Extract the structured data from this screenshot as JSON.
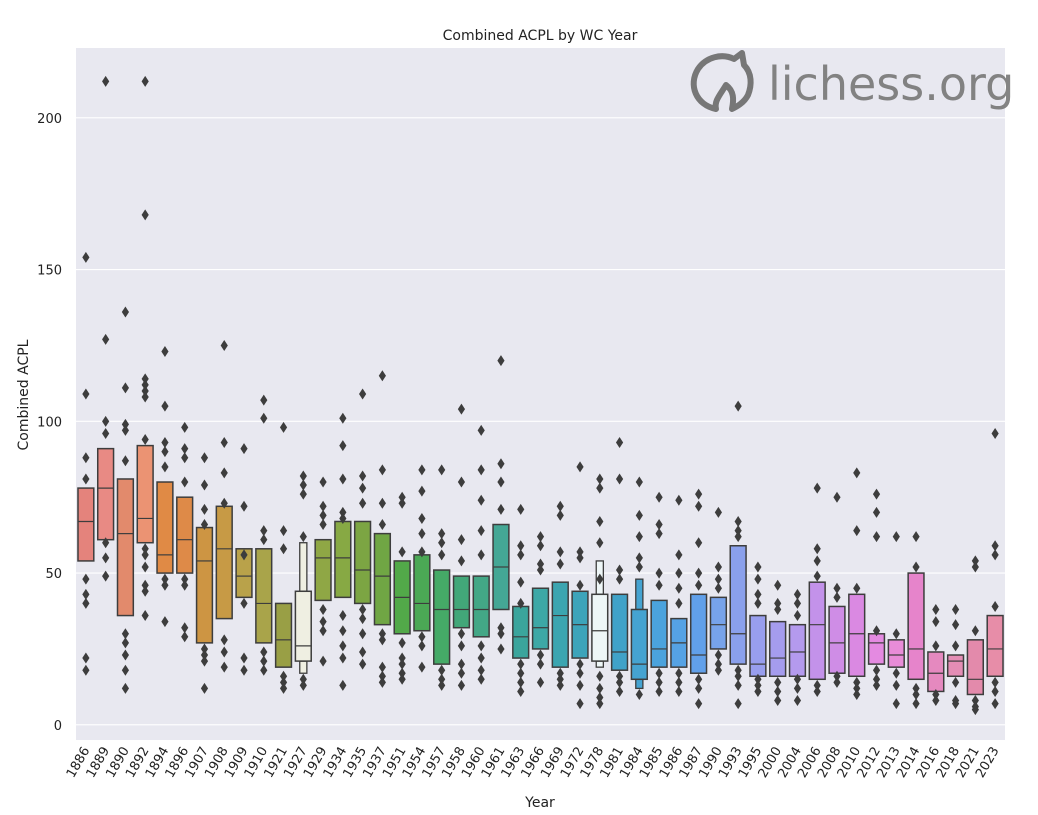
{
  "chart_data": {
    "type": "boxenplot",
    "title": "Combined ACPL by WC Year",
    "xlabel": "Year",
    "ylabel": "Combined ACPL",
    "ylim": [
      -5,
      223
    ],
    "yticks": [
      0,
      50,
      100,
      150,
      200
    ],
    "grid": true,
    "background": "#e8e8f0",
    "watermark": "lichess.org",
    "categories": [
      "1886",
      "1889",
      "1890",
      "1892",
      "1894",
      "1896",
      "1907",
      "1908",
      "1909",
      "1910",
      "1921",
      "1927",
      "1929",
      "1934",
      "1935",
      "1937",
      "1951",
      "1954",
      "1957",
      "1958",
      "1960",
      "1961",
      "1963",
      "1966",
      "1969",
      "1972",
      "1978",
      "1981",
      "1984",
      "1985",
      "1986",
      "1987",
      "1990",
      "1993",
      "1995",
      "2000",
      "2004",
      "2006",
      "2008",
      "2010",
      "2012",
      "2013",
      "2014",
      "2016",
      "2018",
      "2021",
      "2023"
    ],
    "colors": [
      "#e4837c",
      "#e88a84",
      "#e28a6c",
      "#eb9373",
      "#e08a45",
      "#de8a48",
      "#cd9543",
      "#c79a45",
      "#b9a24a",
      "#a9a44a",
      "#999f45",
      "#efefe2",
      "#8fa745",
      "#87a944",
      "#7ca543",
      "#70a644",
      "#52a949",
      "#4ba855",
      "#45aa67",
      "#42a779",
      "#43a786",
      "#44a795",
      "#3ba59c",
      "#3da8a6",
      "#3ba5b0",
      "#3ca4ba",
      "#eef6f7",
      "#40a2c8",
      "#45a3d1",
      "#4ba3dd",
      "#55a2e4",
      "#61a0ea",
      "#77a3eb",
      "#8aa0ec",
      "#989eee",
      "#a59cee",
      "#b49aee",
      "#c392ea",
      "#cf8de6",
      "#da89e2",
      "#e48ae1",
      "#e88cd8",
      "#e684cb",
      "#e589bf",
      "#e48db5",
      "#e38aab",
      "#e78da8"
    ],
    "series": [
      {
        "name": "1886",
        "q1": 54,
        "median": 67,
        "q3": 78,
        "upper": [],
        "lower": [],
        "outliers": [
          154,
          109,
          88,
          81,
          48,
          43,
          40,
          22,
          18
        ]
      },
      {
        "name": "1889",
        "q1": 61,
        "median": 78,
        "q3": 91,
        "upper": [],
        "lower": [],
        "outliers": [
          212,
          127,
          100,
          96,
          60,
          55,
          49
        ]
      },
      {
        "name": "1890",
        "q1": 36,
        "median": 63,
        "q3": 81,
        "upper": [],
        "lower": [],
        "outliers": [
          136,
          111,
          99,
          97,
          87,
          30,
          27,
          23,
          18,
          12
        ]
      },
      {
        "name": "1892",
        "q1": 60,
        "median": 68,
        "q3": 92,
        "upper": [],
        "lower": [],
        "outliers": [
          212,
          168,
          114,
          112,
          110,
          108,
          94,
          58,
          56,
          52,
          46,
          44,
          36
        ]
      },
      {
        "name": "1894",
        "q1": 50,
        "median": 56,
        "q3": 80,
        "upper": [],
        "lower": [],
        "outliers": [
          123,
          105,
          93,
          90,
          85,
          48,
          46,
          34
        ]
      },
      {
        "name": "1896",
        "q1": 50,
        "median": 61,
        "q3": 75,
        "upper": [],
        "lower": [],
        "outliers": [
          98,
          91,
          88,
          80,
          48,
          46,
          32,
          29
        ]
      },
      {
        "name": "1907",
        "q1": 27,
        "median": 54,
        "q3": 65,
        "upper": [],
        "lower": [],
        "outliers": [
          88,
          79,
          71,
          66,
          25,
          23,
          21,
          12
        ]
      },
      {
        "name": "1908",
        "q1": 35,
        "median": 58,
        "q3": 72,
        "upper": [],
        "lower": [],
        "outliers": [
          125,
          93,
          83,
          73,
          28,
          24,
          19
        ]
      },
      {
        "name": "1909",
        "q1": 42,
        "median": 49,
        "q3": 58,
        "upper": [],
        "lower": [],
        "outliers": [
          91,
          72,
          56,
          40,
          22,
          18
        ]
      },
      {
        "name": "1910",
        "q1": 27,
        "median": 40,
        "q3": 58,
        "upper": [],
        "lower": [],
        "outliers": [
          107,
          101,
          64,
          61,
          24,
          21,
          18
        ]
      },
      {
        "name": "1921",
        "q1": 19,
        "median": 28,
        "q3": 40,
        "upper": [],
        "lower": [],
        "outliers": [
          98,
          64,
          58,
          16,
          14,
          12
        ]
      },
      {
        "name": "1927",
        "q1": 21,
        "median": 26,
        "q3": 44,
        "upper": [
          60
        ],
        "lower": [
          17
        ],
        "outliers": [
          82,
          79,
          76,
          62,
          15,
          13
        ]
      },
      {
        "name": "1929",
        "q1": 41,
        "median": 55,
        "q3": 61,
        "upper": [],
        "lower": [],
        "outliers": [
          80,
          72,
          69,
          66,
          38,
          34,
          31,
          21
        ]
      },
      {
        "name": "1934",
        "q1": 42,
        "median": 55,
        "q3": 67,
        "upper": [],
        "lower": [],
        "outliers": [
          101,
          92,
          81,
          70,
          68,
          36,
          31,
          26,
          22,
          13
        ]
      },
      {
        "name": "1935",
        "q1": 40,
        "median": 51,
        "q3": 67,
        "upper": [],
        "lower": [],
        "outliers": [
          109,
          82,
          78,
          73,
          38,
          35,
          30,
          24,
          20
        ]
      },
      {
        "name": "1937",
        "q1": 33,
        "median": 49,
        "q3": 63,
        "upper": [],
        "lower": [],
        "outliers": [
          115,
          84,
          73,
          66,
          30,
          28,
          19,
          16,
          14
        ]
      },
      {
        "name": "1951",
        "q1": 30,
        "median": 42,
        "q3": 54,
        "upper": [],
        "lower": [],
        "outliers": [
          75,
          73,
          57,
          27,
          22,
          20,
          17,
          15
        ]
      },
      {
        "name": "1954",
        "q1": 31,
        "median": 40,
        "q3": 56,
        "upper": [],
        "lower": [],
        "outliers": [
          84,
          77,
          68,
          63,
          57,
          29,
          26,
          19
        ]
      },
      {
        "name": "1957",
        "q1": 20,
        "median": 38,
        "q3": 51,
        "upper": [],
        "lower": [],
        "outliers": [
          84,
          63,
          60,
          56,
          18,
          15,
          13
        ]
      },
      {
        "name": "1958",
        "q1": 32,
        "median": 38,
        "q3": 49,
        "upper": [],
        "lower": [],
        "outliers": [
          104,
          80,
          61,
          54,
          30,
          26,
          20,
          17,
          13
        ]
      },
      {
        "name": "1960",
        "q1": 29,
        "median": 38,
        "q3": 49,
        "upper": [],
        "lower": [],
        "outliers": [
          97,
          84,
          74,
          64,
          56,
          26,
          22,
          18,
          15
        ]
      },
      {
        "name": "1961",
        "q1": 38,
        "median": 52,
        "q3": 66,
        "upper": [],
        "lower": [],
        "outliers": [
          120,
          86,
          80,
          71,
          32,
          30,
          25
        ]
      },
      {
        "name": "1963",
        "q1": 22,
        "median": 29,
        "q3": 39,
        "upper": [],
        "lower": [],
        "outliers": [
          71,
          59,
          56,
          47,
          40,
          20,
          17,
          14,
          11
        ]
      },
      {
        "name": "1966",
        "q1": 25,
        "median": 32,
        "q3": 45,
        "upper": [],
        "lower": [],
        "outliers": [
          62,
          59,
          53,
          51,
          23,
          20,
          14
        ]
      },
      {
        "name": "1969",
        "q1": 19,
        "median": 36,
        "q3": 47,
        "upper": [],
        "lower": [],
        "outliers": [
          72,
          69,
          57,
          53,
          17,
          15,
          13
        ]
      },
      {
        "name": "1972",
        "q1": 22,
        "median": 33,
        "q3": 44,
        "upper": [],
        "lower": [],
        "outliers": [
          85,
          57,
          55,
          46,
          20,
          17,
          13,
          7
        ]
      },
      {
        "name": "1978",
        "q1": 21,
        "median": 31,
        "q3": 43,
        "upper": [
          54
        ],
        "lower": [
          19
        ],
        "outliers": [
          81,
          78,
          67,
          60,
          48,
          16,
          12,
          9,
          7
        ]
      },
      {
        "name": "1981",
        "q1": 18,
        "median": 24,
        "q3": 43,
        "upper": [],
        "lower": [],
        "outliers": [
          93,
          81,
          51,
          48,
          16,
          14,
          11
        ]
      },
      {
        "name": "1984",
        "q1": 15,
        "median": 20,
        "q3": 38,
        "upper": [
          48
        ],
        "lower": [
          12
        ],
        "outliers": [
          80,
          69,
          62,
          55,
          52,
          10
        ]
      },
      {
        "name": "1985",
        "q1": 19,
        "median": 25,
        "q3": 41,
        "upper": [],
        "lower": [],
        "outliers": [
          75,
          66,
          63,
          50,
          46,
          17,
          14,
          11
        ]
      },
      {
        "name": "1986",
        "q1": 19,
        "median": 27,
        "q3": 35,
        "upper": [],
        "lower": [],
        "outliers": [
          74,
          56,
          50,
          45,
          40,
          17,
          14,
          11
        ]
      },
      {
        "name": "1987",
        "q1": 17,
        "median": 23,
        "q3": 43,
        "upper": [],
        "lower": [],
        "outliers": [
          76,
          72,
          60,
          50,
          46,
          15,
          12,
          7
        ]
      },
      {
        "name": "1990",
        "q1": 25,
        "median": 33,
        "q3": 42,
        "upper": [],
        "lower": [],
        "outliers": [
          70,
          52,
          48,
          45,
          23,
          20,
          18
        ]
      },
      {
        "name": "1993",
        "q1": 20,
        "median": 30,
        "q3": 59,
        "upper": [],
        "lower": [],
        "outliers": [
          105,
          67,
          64,
          62,
          18,
          16,
          13,
          7
        ]
      },
      {
        "name": "1995",
        "q1": 16,
        "median": 20,
        "q3": 36,
        "upper": [],
        "lower": [],
        "outliers": [
          52,
          48,
          43,
          40,
          15,
          13,
          11
        ]
      },
      {
        "name": "2000",
        "q1": 16,
        "median": 22,
        "q3": 34,
        "upper": [],
        "lower": [],
        "outliers": [
          46,
          40,
          38,
          14,
          11,
          8
        ]
      },
      {
        "name": "2004",
        "q1": 16,
        "median": 24,
        "q3": 33,
        "upper": [],
        "lower": [],
        "outliers": [
          43,
          40,
          36,
          15,
          12,
          8
        ]
      },
      {
        "name": "2006",
        "q1": 15,
        "median": 33,
        "q3": 47,
        "upper": [],
        "lower": [],
        "outliers": [
          78,
          58,
          54,
          49,
          13,
          11
        ]
      },
      {
        "name": "2008",
        "q1": 17,
        "median": 27,
        "q3": 39,
        "upper": [],
        "lower": [],
        "outliers": [
          75,
          45,
          42,
          16,
          14
        ]
      },
      {
        "name": "2010",
        "q1": 16,
        "median": 30,
        "q3": 43,
        "upper": [],
        "lower": [],
        "outliers": [
          83,
          64,
          45,
          14,
          12,
          10
        ]
      },
      {
        "name": "2012",
        "q1": 20,
        "median": 27,
        "q3": 30,
        "upper": [],
        "lower": [],
        "outliers": [
          76,
          70,
          62,
          31,
          18,
          15,
          13
        ]
      },
      {
        "name": "2013",
        "q1": 19,
        "median": 23,
        "q3": 28,
        "upper": [],
        "lower": [],
        "outliers": [
          62,
          30,
          17,
          13,
          7
        ]
      },
      {
        "name": "2014",
        "q1": 15,
        "median": 25,
        "q3": 50,
        "upper": [],
        "lower": [],
        "outliers": [
          62,
          52,
          12,
          10,
          7
        ]
      },
      {
        "name": "2016",
        "q1": 11,
        "median": 17,
        "q3": 24,
        "upper": [],
        "lower": [],
        "outliers": [
          38,
          34,
          26,
          10,
          8
        ]
      },
      {
        "name": "2018",
        "q1": 16,
        "median": 21,
        "q3": 23,
        "upper": [],
        "lower": [],
        "outliers": [
          38,
          33,
          26,
          14,
          8,
          7
        ]
      },
      {
        "name": "2021",
        "q1": 10,
        "median": 15,
        "q3": 28,
        "upper": [],
        "lower": [],
        "outliers": [
          54,
          52,
          31,
          8,
          6,
          5
        ]
      },
      {
        "name": "2023",
        "q1": 16,
        "median": 25,
        "q3": 36,
        "upper": [],
        "lower": [],
        "outliers": [
          96,
          59,
          56,
          39,
          14,
          11,
          7
        ]
      }
    ]
  }
}
